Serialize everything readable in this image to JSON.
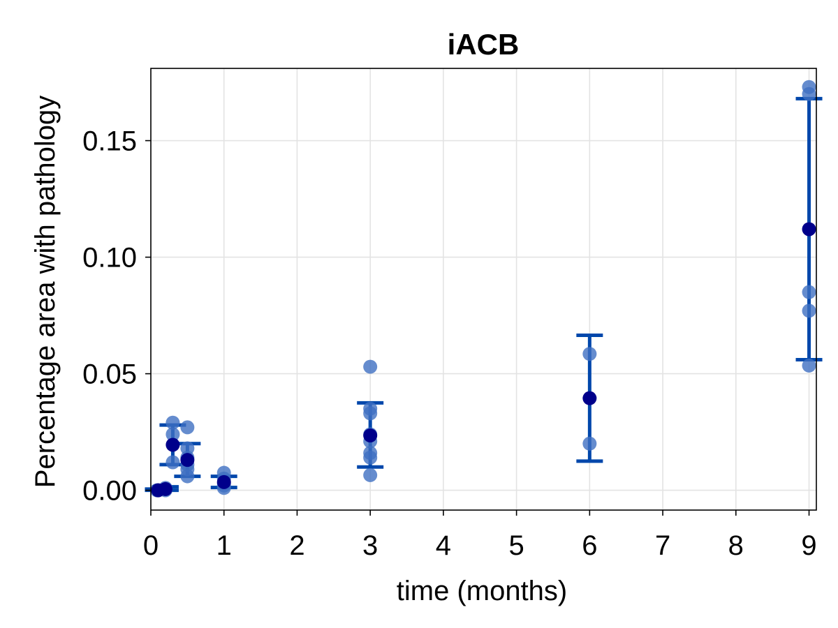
{
  "chart_data": {
    "type": "scatter",
    "title": "iACB",
    "xlabel": "time (months)",
    "ylabel": "Percentage area with pathology",
    "xlim": [
      0,
      9.1
    ],
    "ylim": [
      -0.0085,
      0.181
    ],
    "xticks": [
      0,
      1,
      2,
      3,
      4,
      5,
      6,
      7,
      8,
      9
    ],
    "xtick_labels": [
      "0",
      "1",
      "2",
      "3",
      "4",
      "5",
      "6",
      "7",
      "8",
      "9"
    ],
    "yticks": [
      0.0,
      0.05,
      0.1,
      0.15
    ],
    "ytick_labels": [
      "0.00",
      "0.05",
      "0.10",
      "0.15"
    ],
    "grid": true,
    "point_color": "#3e6fc2",
    "mean_color": "#00008b",
    "errorbar_color": "#0047ab",
    "points": [
      {
        "x": 0.083,
        "y": 0.0
      },
      {
        "x": 0.1,
        "y": 0.0
      },
      {
        "x": 0.2,
        "y": 0.001
      },
      {
        "x": 0.2,
        "y": 0.0
      },
      {
        "x": 0.3,
        "y": 0.029
      },
      {
        "x": 0.3,
        "y": 0.024
      },
      {
        "x": 0.3,
        "y": 0.012
      },
      {
        "x": 0.5,
        "y": 0.027
      },
      {
        "x": 0.5,
        "y": 0.018
      },
      {
        "x": 0.5,
        "y": 0.014
      },
      {
        "x": 0.5,
        "y": 0.011
      },
      {
        "x": 0.5,
        "y": 0.009
      },
      {
        "x": 0.5,
        "y": 0.006
      },
      {
        "x": 1.0,
        "y": 0.0075
      },
      {
        "x": 1.0,
        "y": 0.005
      },
      {
        "x": 1.0,
        "y": 0.003
      },
      {
        "x": 1.0,
        "y": 0.002
      },
      {
        "x": 1.0,
        "y": 0.001
      },
      {
        "x": 3.0,
        "y": 0.053
      },
      {
        "x": 3.0,
        "y": 0.035
      },
      {
        "x": 3.0,
        "y": 0.033
      },
      {
        "x": 3.0,
        "y": 0.024
      },
      {
        "x": 3.0,
        "y": 0.021
      },
      {
        "x": 3.0,
        "y": 0.016
      },
      {
        "x": 3.0,
        "y": 0.014
      },
      {
        "x": 3.0,
        "y": 0.0065
      },
      {
        "x": 6.0,
        "y": 0.0585
      },
      {
        "x": 6.0,
        "y": 0.02
      },
      {
        "x": 9.0,
        "y": 0.173
      },
      {
        "x": 9.0,
        "y": 0.17
      },
      {
        "x": 9.0,
        "y": 0.085
      },
      {
        "x": 9.0,
        "y": 0.077
      },
      {
        "x": 9.0,
        "y": 0.0535
      }
    ],
    "means": [
      {
        "x": 0.1,
        "y": 0.0,
        "lower": 0.0,
        "upper": 0.0005
      },
      {
        "x": 0.2,
        "y": 0.0005,
        "lower": 0.0,
        "upper": 0.0015
      },
      {
        "x": 0.3,
        "y": 0.0195,
        "lower": 0.011,
        "upper": 0.028
      },
      {
        "x": 0.5,
        "y": 0.013,
        "lower": 0.006,
        "upper": 0.02
      },
      {
        "x": 1.0,
        "y": 0.0035,
        "lower": 0.0012,
        "upper": 0.006
      },
      {
        "x": 3.0,
        "y": 0.0235,
        "lower": 0.01,
        "upper": 0.0375
      },
      {
        "x": 6.0,
        "y": 0.0395,
        "lower": 0.0125,
        "upper": 0.0665
      },
      {
        "x": 9.0,
        "y": 0.112,
        "lower": 0.056,
        "upper": 0.168
      }
    ]
  }
}
